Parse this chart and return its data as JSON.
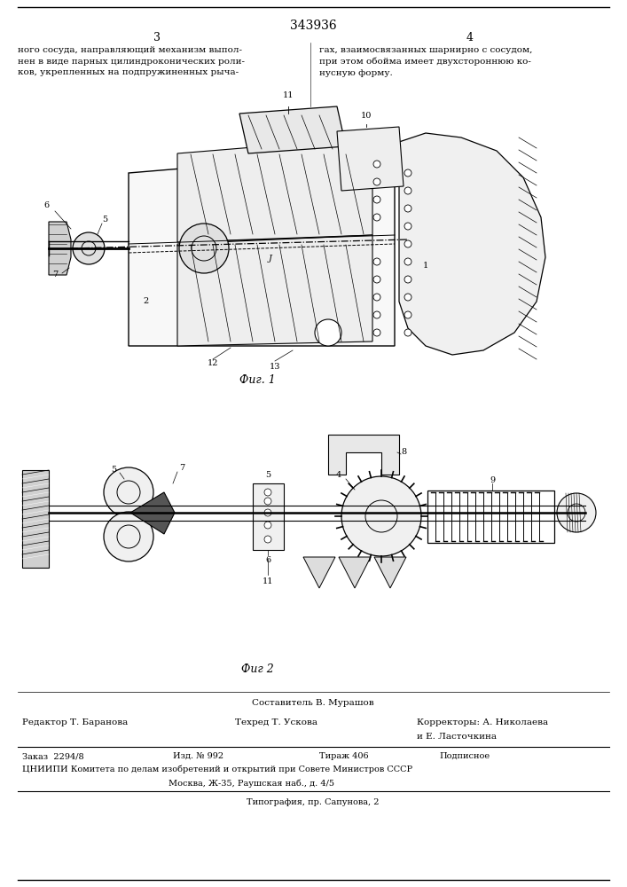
{
  "patent_number": "343936",
  "page_left": "3",
  "page_right": "4",
  "text_left": "ного сосуда, направляющий механизм выпол-\nнен в виде парных цилиндроконических роли-\nков, укрепленных на подпружиненных рыча-",
  "text_right": "гах, взаимосвязанных шарнирно с сосудом,\nпри этом обойма имеет двухстороннюю ко-\nнусную форму.",
  "fig1_label": "Фиг. 1",
  "fig2_label": "Фиг 2",
  "footer_composer": "Составитель В. Мурашов",
  "footer_editor": "Редактор Т. Баранова",
  "footer_techred": "Техред Т. Ускова",
  "footer_correctors_1": "Корректоры: А. Николаева",
  "footer_correctors_2": "и Е. Ласточкина",
  "footer_order": "Заказ  2294/8",
  "footer_izd": "Изд. № 992",
  "footer_tirazh": "Тираж 406",
  "footer_podpisnoe": "Подписное",
  "footer_cniipи": "ЦНИИПИ Комитета по делам изобретений и открытий при Совете Министров СССР",
  "footer_moscow": "Москва, Ж-35, Раушская наб., д. 4/5",
  "footer_tipografiya": "Типография, пр. Сапунова, 2",
  "bg_color": "#ffffff",
  "text_color": "#000000"
}
